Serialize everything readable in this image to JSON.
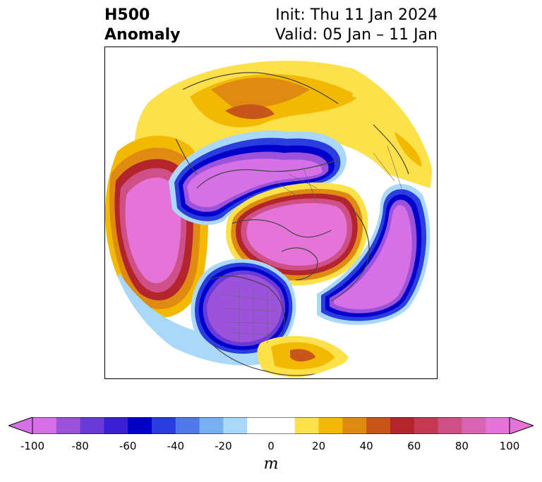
{
  "title": {
    "field": "H500",
    "kind": "Anomaly",
    "init": "Init: Thu 11 Jan 2024",
    "valid": "Valid: 05 Jan – 11 Jan"
  },
  "colorbar": {
    "ticks": [
      "-100",
      "-80",
      "-60",
      "-40",
      "-20",
      "0",
      "20",
      "40",
      "60",
      "80",
      "100"
    ],
    "unit": "m",
    "bins": [
      {
        "from": -100,
        "to": -90,
        "color": "#d670e6"
      },
      {
        "from": -90,
        "to": -80,
        "color": "#9d52dc"
      },
      {
        "from": -80,
        "to": -70,
        "color": "#6a3ad8"
      },
      {
        "from": -70,
        "to": -60,
        "color": "#3b1fd6"
      },
      {
        "from": -60,
        "to": -50,
        "color": "#0000cc"
      },
      {
        "from": -50,
        "to": -40,
        "color": "#2a3ee0"
      },
      {
        "from": -40,
        "to": -30,
        "color": "#4f78e8"
      },
      {
        "from": -30,
        "to": -20,
        "color": "#78b0f0"
      },
      {
        "from": -20,
        "to": -10,
        "color": "#a9d8fa"
      },
      {
        "from": -10,
        "to": 10,
        "color": "#ffffff"
      },
      {
        "from": 10,
        "to": 20,
        "color": "#fde14a"
      },
      {
        "from": 20,
        "to": 30,
        "color": "#f3b800"
      },
      {
        "from": 30,
        "to": 40,
        "color": "#df8a10"
      },
      {
        "from": 40,
        "to": 50,
        "color": "#c8561a"
      },
      {
        "from": 50,
        "to": 60,
        "color": "#b3242c"
      },
      {
        "from": 60,
        "to": 70,
        "color": "#c33a52"
      },
      {
        "from": 70,
        "to": 80,
        "color": "#cf5086"
      },
      {
        "from": 80,
        "to": 90,
        "color": "#da64b4"
      },
      {
        "from": 90,
        "to": 100,
        "color": "#e574d8"
      }
    ],
    "extend": "both",
    "min_color": "#d670e6",
    "max_color": "#e574d8"
  },
  "map": {
    "projection": "north-polar-stereographic",
    "features": [
      "high-pressure-anomaly-north-pacific",
      "low-pressure-anomaly-siberia",
      "low-pressure-anomaly-north-america",
      "high-pressure-anomaly-arctic",
      "low-pressure-anomaly-north-atlantic-europe"
    ]
  }
}
